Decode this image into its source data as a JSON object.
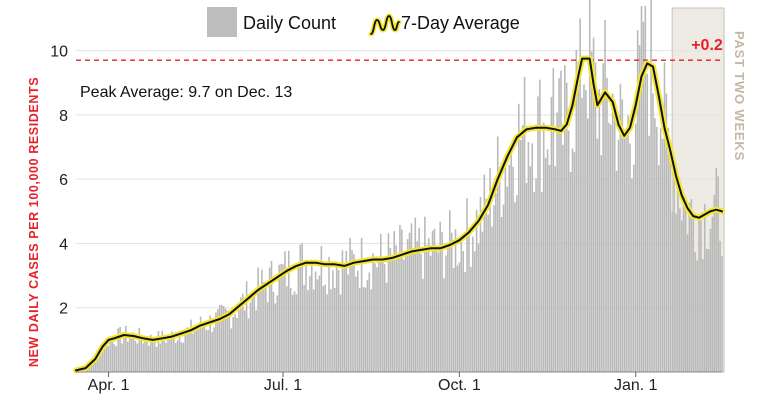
{
  "chart_data": {
    "type": "bar",
    "ylabel": "NEW DAILY CASES PER 100,000 RESIDENTS",
    "ylim": [
      0,
      11.2
    ],
    "y_ticks": [
      2,
      4,
      6,
      8,
      10
    ],
    "x_ticks": [
      {
        "x": 17,
        "label": "Apr. 1"
      },
      {
        "x": 108,
        "label": "Jul. 1"
      },
      {
        "x": 200,
        "label": "Oct. 1"
      },
      {
        "x": 292,
        "label": "Jan. 1"
      }
    ],
    "x_range": [
      0,
      325
    ],
    "legend": {
      "bars_label": "Daily Count",
      "line_label": "7-Day Average",
      "position": "top-center"
    },
    "peak": {
      "label": "Peak Average: 9.7 on Dec. 13",
      "value": 9.7
    },
    "recent": {
      "label": "PAST TWO WEEKS",
      "change": "+0.2",
      "start_x": 311
    },
    "average_points": [
      [
        0,
        0.05
      ],
      [
        5,
        0.12
      ],
      [
        10,
        0.4
      ],
      [
        14,
        0.8
      ],
      [
        17,
        1.0
      ],
      [
        20,
        1.05
      ],
      [
        25,
        1.15
      ],
      [
        30,
        1.12
      ],
      [
        35,
        1.05
      ],
      [
        40,
        1.0
      ],
      [
        45,
        1.05
      ],
      [
        50,
        1.1
      ],
      [
        55,
        1.2
      ],
      [
        60,
        1.3
      ],
      [
        65,
        1.45
      ],
      [
        70,
        1.55
      ],
      [
        75,
        1.65
      ],
      [
        80,
        1.8
      ],
      [
        85,
        2.05
      ],
      [
        90,
        2.3
      ],
      [
        95,
        2.55
      ],
      [
        100,
        2.75
      ],
      [
        105,
        2.95
      ],
      [
        110,
        3.15
      ],
      [
        115,
        3.3
      ],
      [
        120,
        3.4
      ],
      [
        125,
        3.4
      ],
      [
        130,
        3.35
      ],
      [
        135,
        3.35
      ],
      [
        140,
        3.3
      ],
      [
        145,
        3.4
      ],
      [
        150,
        3.45
      ],
      [
        155,
        3.5
      ],
      [
        160,
        3.5
      ],
      [
        165,
        3.55
      ],
      [
        170,
        3.65
      ],
      [
        175,
        3.75
      ],
      [
        180,
        3.8
      ],
      [
        185,
        3.85
      ],
      [
        190,
        3.85
      ],
      [
        195,
        3.95
      ],
      [
        200,
        4.1
      ],
      [
        205,
        4.35
      ],
      [
        210,
        4.7
      ],
      [
        215,
        5.2
      ],
      [
        220,
        6.0
      ],
      [
        225,
        6.7
      ],
      [
        230,
        7.3
      ],
      [
        235,
        7.55
      ],
      [
        240,
        7.6
      ],
      [
        245,
        7.6
      ],
      [
        250,
        7.55
      ],
      [
        253,
        7.5
      ],
      [
        256,
        7.7
      ],
      [
        259,
        8.3
      ],
      [
        262,
        9.2
      ],
      [
        264,
        9.75
      ],
      [
        268,
        9.75
      ],
      [
        270,
        8.95
      ],
      [
        272,
        8.3
      ],
      [
        276,
        8.7
      ],
      [
        280,
        8.4
      ],
      [
        283,
        7.7
      ],
      [
        286,
        7.35
      ],
      [
        289,
        7.6
      ],
      [
        292,
        8.3
      ],
      [
        295,
        9.2
      ],
      [
        298,
        9.6
      ],
      [
        301,
        9.5
      ],
      [
        304,
        8.6
      ],
      [
        307,
        7.6
      ],
      [
        310,
        6.9
      ],
      [
        313,
        6.1
      ],
      [
        316,
        5.5
      ],
      [
        319,
        5.1
      ],
      [
        322,
        4.85
      ],
      [
        325,
        4.8
      ],
      [
        328,
        4.9
      ],
      [
        331,
        5.0
      ],
      [
        334,
        5.05
      ],
      [
        337,
        5.0
      ]
    ]
  }
}
